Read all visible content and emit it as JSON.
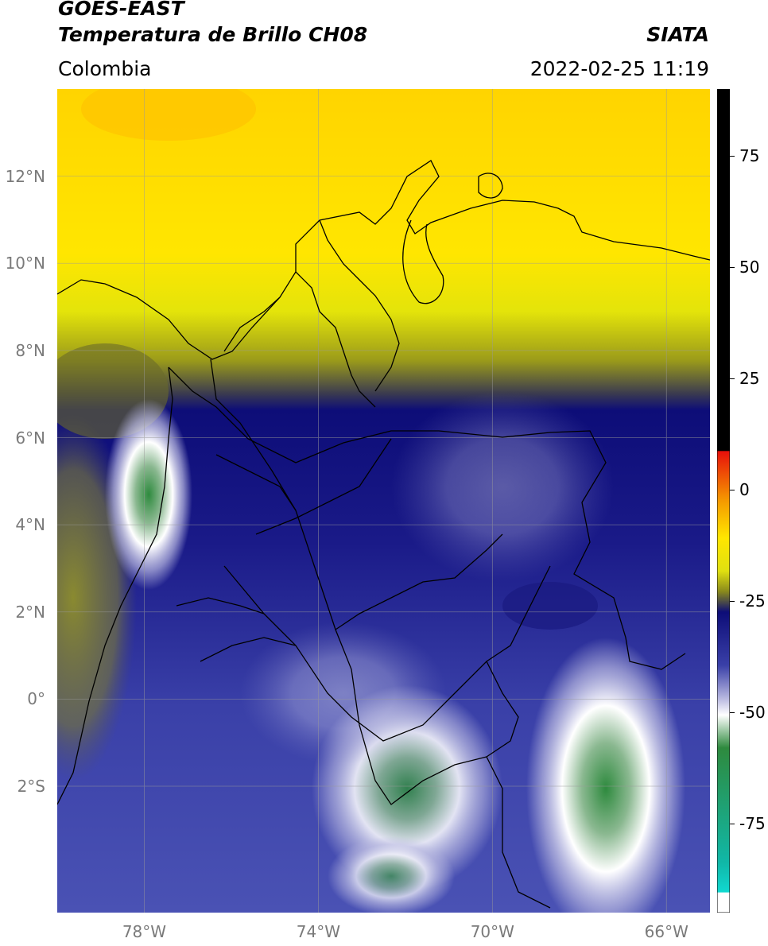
{
  "header": {
    "satellite": "GOES-EAST",
    "product": "Temperatura de Brillo CH08",
    "organization": "SIATA",
    "region": "Colombia",
    "datetime": "2022-02-25 11:19"
  },
  "map": {
    "lon_range": [
      -80,
      -65
    ],
    "lat_range": [
      -4.9,
      14
    ],
    "lat_labels": [
      {
        "lat": 12,
        "label": "12°N"
      },
      {
        "lat": 10,
        "label": "10°N"
      },
      {
        "lat": 8,
        "label": "8°N"
      },
      {
        "lat": 6,
        "label": "6°N"
      },
      {
        "lat": 4,
        "label": "4°N"
      },
      {
        "lat": 2,
        "label": "2°N"
      },
      {
        "lat": 0,
        "label": "0°"
      },
      {
        "lat": -2,
        "label": "2°S"
      }
    ],
    "lon_labels": [
      {
        "lon": -78,
        "label": "78°W"
      },
      {
        "lon": -74,
        "label": "74°W"
      },
      {
        "lon": -70,
        "label": "70°W"
      },
      {
        "lon": -66,
        "label": "66°W"
      }
    ],
    "grid": true
  },
  "colorbar": {
    "range": [
      -95,
      90
    ],
    "ticks": [
      {
        "value": 75,
        "label": "75"
      },
      {
        "value": 50,
        "label": "50"
      },
      {
        "value": 25,
        "label": "25"
      },
      {
        "value": 0,
        "label": "0"
      },
      {
        "value": -25,
        "label": "-25"
      },
      {
        "value": -50,
        "label": "-50"
      },
      {
        "value": -75,
        "label": "-75"
      }
    ],
    "colors": {
      "black": "#000000",
      "red": "#e8100a",
      "orange": "#f59a00",
      "yellow": "#ffe600",
      "olive": "#8a8a1c",
      "navy": "#0d0d78",
      "blue": "#3a40a8",
      "lavender": "#b8b8e0",
      "white": "#ffffff",
      "green": "#2e8a3e",
      "cyan": "#10d8d0"
    }
  }
}
